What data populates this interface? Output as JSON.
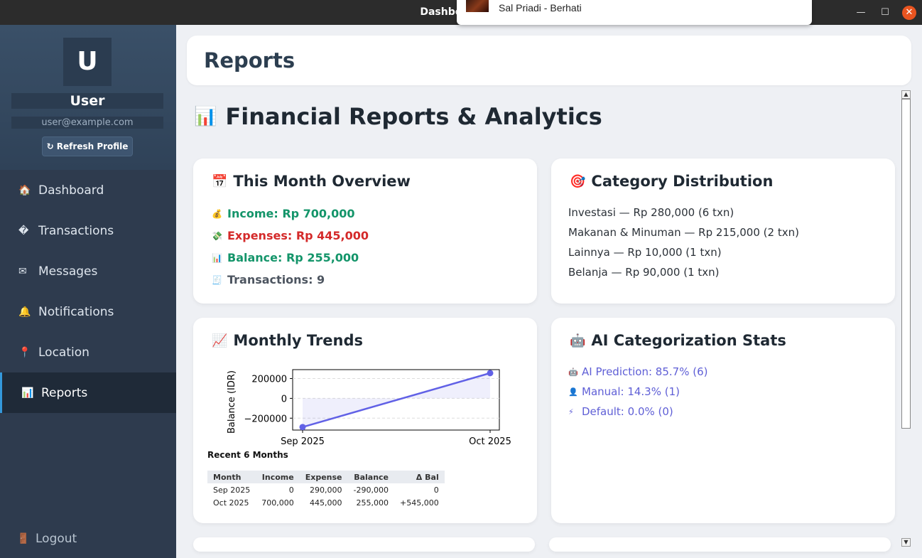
{
  "window": {
    "title": "Dashboard - Fi"
  },
  "music": {
    "text": "Sal Priadi - Berhati"
  },
  "profile": {
    "initial": "U",
    "name": "User",
    "email": "user@example.com",
    "refresh_label": "↻ Refresh Profile"
  },
  "nav": [
    {
      "icon": "🏠",
      "label": "Dashboard"
    },
    {
      "icon": "�",
      "label": "Transactions"
    },
    {
      "icon": "✉",
      "label": "Messages"
    },
    {
      "icon": "🔔",
      "label": "Notifications"
    },
    {
      "icon": "📍",
      "label": "Location"
    },
    {
      "icon": "📊",
      "label": "Reports"
    }
  ],
  "logout": {
    "icon": "🚪",
    "label": "Logout"
  },
  "header": {
    "title": "Reports"
  },
  "page": {
    "icon": "📊",
    "title": "Financial Reports & Analytics"
  },
  "overview": {
    "icon": "📅",
    "title": "This Month Overview",
    "income": {
      "icon": "💰",
      "text": "Income: Rp 700,000"
    },
    "expenses": {
      "icon": "💸",
      "text": "Expenses: Rp 445,000"
    },
    "balance": {
      "icon": "📊",
      "text": "Balance: Rp 255,000"
    },
    "transactions": {
      "icon": "🧾",
      "text": "Transactions: 9"
    }
  },
  "category": {
    "icon": "🎯",
    "title": "Category Distribution",
    "items": [
      "Investasi — Rp 280,000 (6 txn)",
      "Makanan & Minuman — Rp 215,000 (2 txn)",
      "Lainnya — Rp 10,000 (1 txn)",
      "Belanja — Rp 90,000 (1 txn)"
    ]
  },
  "trends": {
    "icon": "📈",
    "title": "Monthly Trends",
    "recent_title": "Recent 6 Months",
    "table": {
      "headers": [
        "Month",
        "Income",
        "Expense",
        "Balance",
        "Δ Bal"
      ],
      "rows": [
        [
          "Sep 2025",
          "0",
          "290,000",
          "-290,000",
          "0"
        ],
        [
          "Oct 2025",
          "700,000",
          "445,000",
          "255,000",
          "+545,000"
        ]
      ]
    }
  },
  "chart_data": {
    "type": "line",
    "x": [
      "Sep 2025",
      "Oct 2025"
    ],
    "series": [
      {
        "values": [
          -290000,
          255000
        ]
      }
    ],
    "ylabel": "Balance (IDR)",
    "yticks": [
      200000,
      0,
      -200000
    ],
    "ytick_labels": [
      "200000",
      "0",
      "−200000"
    ],
    "ylim": [
      -320000,
      290000
    ],
    "color": "#6161e6"
  },
  "ai": {
    "icon": "🤖",
    "title": "AI Categorization Stats",
    "items": [
      {
        "icon": "🤖",
        "text": "AI Prediction: 85.7% (6)"
      },
      {
        "icon": "👤",
        "text": "Manual: 14.3% (1)"
      },
      {
        "icon": "⚡",
        "text": "Default: 0.0% (0)"
      }
    ]
  }
}
